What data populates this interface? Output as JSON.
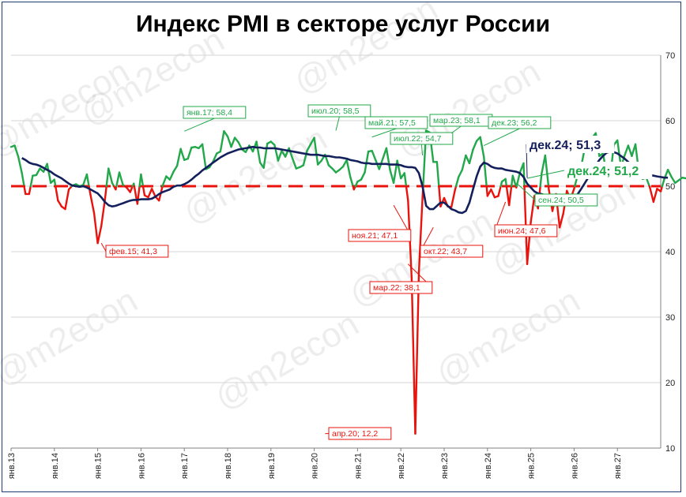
{
  "chart_data": {
    "type": "line",
    "title": "Индекс PMI в секторе услуг России",
    "watermark": "@m2econ",
    "ylim": [
      10,
      70
    ],
    "yticks": [
      "10",
      "20",
      "30",
      "40",
      "50",
      "60",
      "70"
    ],
    "x_ticks": [
      "янв.13",
      "янв.14",
      "янв.15",
      "янв.16",
      "янв.17",
      "янв.18",
      "янв.19",
      "янв.20",
      "янв.21",
      "янв.22",
      "янв.23",
      "янв.24",
      "янв.25",
      "янв.26",
      "янв.27"
    ],
    "x_range_months": [
      0,
      180
    ],
    "threshold": 50,
    "colors": {
      "above": "#22a84a",
      "below": "#e8130c",
      "avg": "#14205c",
      "threshold": "#e8130c",
      "axis": "#808080"
    },
    "series": [
      {
        "values": [
          56,
          56.2,
          54.5,
          52,
          48.8,
          48.8,
          51.6,
          51.7,
          52.7,
          52.2,
          53.4,
          50.5,
          51,
          47.8,
          46.9,
          46.5,
          49.5,
          50.1,
          50.3,
          50,
          50.2,
          51.8,
          48.7,
          45.9,
          41.3,
          43.9,
          47.9,
          52.7,
          50.5,
          49.5,
          52.1,
          50.2,
          49.8,
          49.1,
          50.4,
          47.3,
          51.8,
          48.6,
          48.3,
          49.6,
          48.4,
          47.8,
          50.1,
          51.5,
          51,
          52.2,
          53.1,
          55.7,
          54,
          54.2,
          55.9,
          56,
          55.8,
          56.4,
          52.6,
          52.9,
          53.8,
          55,
          55.3,
          58.4,
          57.6,
          56,
          57.4,
          56.7,
          55.6,
          55.2,
          56.2,
          55.3,
          56.8,
          53.6,
          52.8,
          56.5,
          56.8,
          56.3,
          53.9,
          55.4,
          54.5,
          55.8,
          54.2,
          52.7,
          52.9,
          53.2,
          55.4,
          56.4,
          57.4,
          53.3,
          53.9,
          54.8,
          53.2,
          52.7,
          52.1,
          52.5,
          53,
          54,
          51.4,
          49.5,
          50.7,
          51,
          52.1,
          55.3,
          55.4,
          54,
          52.6,
          54.2,
          55.8,
          52.5,
          50.5,
          53.9,
          51.2,
          52,
          47.8,
          35.9,
          12.2,
          36.9,
          48.2,
          58.5,
          58.2,
          53.7,
          53.7,
          46.9,
          48.2,
          46.9,
          46.8,
          49.4,
          51.4,
          52.5,
          54.7,
          53.5,
          55.6,
          56.9,
          57.5,
          54.5,
          48.5,
          49.5,
          48.3,
          48.5,
          50.7,
          51.1,
          47.1,
          51.6,
          49.8,
          52.1,
          53.5,
          38.1,
          44.5,
          48.5,
          46.6,
          51.9,
          54.7,
          49.5,
          46.2,
          48.8,
          43.7,
          45.8,
          49.3,
          48,
          49.6,
          51.7,
          53.1,
          55.9,
          56,
          57.4,
          58.1,
          54.6,
          55,
          52,
          51.3,
          56.3,
          57,
          52.9,
          54.7,
          56.2,
          54.6,
          56.4,
          51.9,
          51.1,
          51.3,
          49.8,
          47.6,
          49.6,
          49.2,
          51.1,
          52.5,
          51.4,
          50.5,
          50.9,
          51.3,
          51.2
        ],
        "avg": [
          54.3,
          54.0,
          53.6,
          53.4,
          53.3,
          53.1,
          52.8,
          52.5,
          52.2,
          51.8,
          51.5,
          51.2,
          50.8,
          50.4,
          50.1,
          50.0,
          49.9,
          50.0,
          49.8,
          49.5,
          49.2,
          48.9,
          48.3,
          47.6,
          47.1,
          46.9,
          47.0,
          47.2,
          47.4,
          47.6,
          47.8,
          47.9,
          47.9,
          48.0,
          48.0,
          48.0,
          48.1,
          48.4,
          48.8,
          49.1,
          49.3,
          49.5,
          49.9,
          50.1,
          50.1,
          50.3,
          50.6,
          51.0,
          51.5,
          51.9,
          52.4,
          52.8,
          53.2,
          53.6,
          54.0,
          54.4,
          54.7,
          55.0,
          55.2,
          55.4,
          55.6,
          55.7,
          55.8,
          55.9,
          56.0,
          55.9,
          55.9,
          55.8,
          55.8,
          55.8,
          55.8,
          55.7,
          55.6,
          55.5,
          55.4,
          55.3,
          55.2,
          55.1,
          55.0,
          54.9,
          54.8,
          54.8,
          54.8,
          54.7,
          54.6,
          54.6,
          54.5,
          54.4,
          54.4,
          54.3,
          54.2,
          54.0,
          53.9,
          53.8,
          53.6,
          53.5,
          53.5,
          53.4,
          53.4,
          53.4,
          53.4,
          53.4,
          53.3,
          53.3,
          53.3,
          53.2,
          53.0,
          52.9,
          52.9,
          52.8,
          52.0,
          50.0,
          47.0,
          46.5,
          46.5,
          47.0,
          47.5,
          47.5,
          47.0,
          46.5,
          46.3,
          46.0,
          45.9,
          46.2,
          47.5,
          49.5,
          51.5,
          53.0,
          53.6,
          53.4,
          53.0,
          52.8,
          52.7,
          52.7,
          52.5,
          52.4,
          52.3,
          52.2,
          52.0,
          51.4,
          50.4,
          49.8,
          49.2,
          48.9,
          48.8,
          48.6,
          48.6,
          48.5,
          48.4,
          48.5,
          48.5,
          48.3,
          48.2,
          48.3,
          48.8,
          49.6,
          50.5,
          51.4,
          52.4,
          53.2,
          54.0,
          54.6,
          55.1,
          55.3,
          55.2,
          55.0,
          54.6,
          54.2,
          53.7,
          53.3,
          52.8,
          52.4,
          52.0,
          51.8,
          51.7,
          51.6,
          51.5,
          51.4,
          51.3,
          51.3
        ]
      }
    ],
    "annotations": [
      {
        "text": "фев.15; 41,3",
        "color": "red"
      },
      {
        "text": "янв.17; 58,4",
        "color": "green"
      },
      {
        "text": "июл.20; 58,5",
        "color": "green"
      },
      {
        "text": "май.21; 57,5",
        "color": "green"
      },
      {
        "text": "июл.22; 54,7",
        "color": "green"
      },
      {
        "text": "мар.23; 58,1",
        "color": "green"
      },
      {
        "text": "дек.23; 56,2",
        "color": "green"
      },
      {
        "text": "ноя.21; 47,1",
        "color": "red"
      },
      {
        "text": "мар.22; 38,1",
        "color": "red"
      },
      {
        "text": "окт.22; 43,7",
        "color": "red"
      },
      {
        "text": "июн.24; 47,6",
        "color": "red"
      },
      {
        "text": "апр.20; 12,2",
        "color": "red"
      },
      {
        "text": "сен.24; 50,5",
        "color": "green"
      },
      {
        "text": "дек.24; 51,3",
        "color": "navy"
      },
      {
        "text": "дек.24; 51,2",
        "color": "green"
      }
    ]
  }
}
